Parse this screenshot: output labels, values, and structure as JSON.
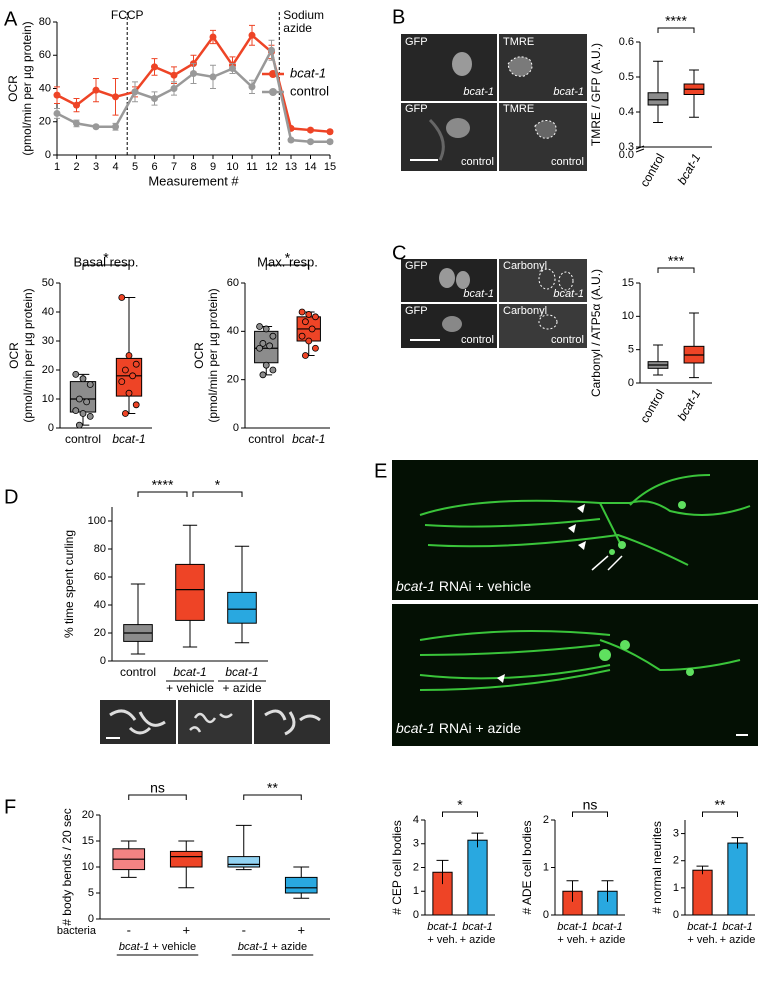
{
  "panel_letters": [
    "A",
    "B",
    "C",
    "D",
    "E",
    "F"
  ],
  "micrographs": {
    "B": [
      [
        "GFP",
        "bcat-1"
      ],
      [
        "TMRE",
        "bcat-1"
      ],
      [
        "GFP",
        "control"
      ],
      [
        "TMRE",
        "control"
      ]
    ],
    "C": [
      [
        "GFP",
        "bcat-1"
      ],
      [
        "Carbonyl",
        "bcat-1"
      ],
      [
        "GFP",
        "control"
      ],
      [
        "Carbonyl",
        "control"
      ]
    ],
    "E": [
      [
        "bcat-1",
        "RNAi + vehicle"
      ],
      [
        "bcat-1",
        "RNAi + azide"
      ]
    ]
  },
  "chart_data": [
    {
      "type": "line",
      "x": [
        1,
        2,
        3,
        4,
        5,
        6,
        7,
        8,
        9,
        10,
        11,
        12,
        13,
        14,
        15
      ],
      "xlim": [
        1,
        15
      ],
      "xticks": [
        1,
        2,
        3,
        4,
        5,
        6,
        7,
        8,
        9,
        10,
        11,
        12,
        13,
        14,
        15
      ],
      "xlabel": "Measurement #",
      "ylabel": [
        "OCR",
        "(pmol/min per µg protein)"
      ],
      "ylim": [
        0,
        80
      ],
      "yticks": [
        0,
        20,
        40,
        60,
        80
      ],
      "legend": "upper right",
      "annotations": [
        {
          "x": 4.6,
          "text": [
            "FCCP"
          ]
        },
        {
          "x": 12.4,
          "text": [
            "Sodium",
            "azide"
          ]
        }
      ],
      "series": [
        {
          "name": "bcat-1",
          "color": "#ee4426",
          "values": [
            36,
            30,
            39,
            35,
            38,
            53,
            48,
            55,
            71,
            54,
            72,
            62,
            16,
            15,
            14
          ],
          "errors": [
            5,
            4,
            7,
            11,
            3,
            5,
            5,
            5,
            4,
            5,
            6,
            4,
            1,
            1,
            1
          ]
        },
        {
          "name": "control",
          "color": "#999999",
          "values": [
            25,
            19,
            17,
            17,
            38,
            34,
            40,
            49,
            47,
            52,
            41,
            63,
            9,
            8,
            8
          ],
          "errors": [
            3,
            2,
            1,
            2,
            6,
            4,
            4,
            6,
            7,
            3,
            4,
            6,
            1,
            1,
            1
          ]
        }
      ]
    },
    {
      "type": "box",
      "title": "Basal resp.",
      "ylabel": [
        "OCR",
        "(pmol/min per µg protein)"
      ],
      "ylim": [
        0,
        50
      ],
      "yticks": [
        0,
        10,
        20,
        30,
        40,
        50
      ],
      "categories": [
        "control",
        "bcat-1"
      ],
      "significance": [
        "*"
      ],
      "boxes": [
        {
          "color": "#8c8c8c",
          "min": 1,
          "q1": 5.5,
          "median": 10,
          "q3": 16,
          "max": 18.5,
          "points": [
            18.5,
            17,
            15,
            10,
            9,
            6,
            5,
            4,
            1
          ]
        },
        {
          "color": "#ee4426",
          "min": 5,
          "q1": 11,
          "median": 18,
          "q3": 24,
          "max": 45,
          "points": [
            45,
            25,
            22,
            20,
            18,
            16,
            12,
            8,
            5
          ]
        }
      ]
    },
    {
      "type": "box",
      "title": "Max. resp.",
      "ylabel": [
        "OCR",
        "(pmol/min per µg protein)"
      ],
      "ylim": [
        0,
        60
      ],
      "yticks": [
        0,
        20,
        40,
        60
      ],
      "categories": [
        "control",
        "bcat-1"
      ],
      "significance": [
        "*"
      ],
      "boxes": [
        {
          "color": "#8c8c8c",
          "min": 22,
          "q1": 27,
          "median": 33,
          "q3": 40,
          "max": 42,
          "points": [
            42,
            41,
            38,
            35,
            34,
            33,
            26,
            24,
            22
          ]
        },
        {
          "color": "#ee4426",
          "min": 30,
          "q1": 36,
          "median": 41,
          "q3": 46,
          "max": 48,
          "points": [
            48,
            47,
            46,
            44,
            41,
            38,
            36,
            33,
            30
          ]
        }
      ]
    },
    {
      "type": "box",
      "ylabel": [
        "TMRE / GFP (A.U.)"
      ],
      "ylim": [
        0.3,
        0.6
      ],
      "yticks": [
        0.3,
        0.4,
        0.5,
        0.6
      ],
      "axis_break_label": "0.0",
      "categories": [
        "control",
        "bcat-1"
      ],
      "significance": [
        "****"
      ],
      "boxes": [
        {
          "color": "#8c8c8c",
          "min": 0.37,
          "q1": 0.42,
          "median": 0.435,
          "q3": 0.455,
          "max": 0.545
        },
        {
          "color": "#ee4426",
          "min": 0.385,
          "q1": 0.45,
          "median": 0.465,
          "q3": 0.48,
          "max": 0.52
        }
      ]
    },
    {
      "type": "box",
      "ylabel": [
        "Carbonyl / ATP5α (A.U.)"
      ],
      "ylim": [
        0,
        15
      ],
      "yticks": [
        0,
        5,
        10,
        15
      ],
      "categories": [
        "control",
        "bcat-1"
      ],
      "significance": [
        "***"
      ],
      "boxes": [
        {
          "color": "#8c8c8c",
          "min": 1.2,
          "q1": 2.2,
          "median": 2.7,
          "q3": 3.2,
          "max": 5.7
        },
        {
          "color": "#ee4426",
          "min": 0.8,
          "q1": 3,
          "median": 4.2,
          "q3": 5.5,
          "max": 10.5
        }
      ]
    },
    {
      "type": "box",
      "ylabel": [
        "% time spent curling"
      ],
      "ylim": [
        0,
        110
      ],
      "yticks": [
        0,
        20,
        40,
        60,
        80,
        100
      ],
      "categories": [
        "control",
        "bcat-1",
        "bcat-1"
      ],
      "group_labels": [
        "+ vehicle",
        "+ azide"
      ],
      "significance": [
        "****",
        "*"
      ],
      "boxes": [
        {
          "color": "#8c8c8c",
          "min": 5,
          "q1": 14,
          "median": 20,
          "q3": 26,
          "max": 55
        },
        {
          "color": "#ee4426",
          "min": 10,
          "q1": 29,
          "median": 51,
          "q3": 69,
          "max": 97
        },
        {
          "color": "#29a8e0",
          "min": 13,
          "q1": 27,
          "median": 37,
          "q3": 49,
          "max": 82
        }
      ]
    },
    {
      "type": "box",
      "ylabel": [
        "# body bends / 20 sec"
      ],
      "ylim": [
        0,
        20
      ],
      "yticks": [
        0,
        5,
        10,
        15,
        20
      ],
      "categories": [
        "-",
        "+",
        "-",
        "+"
      ],
      "row_label": "bacteria",
      "group_labels": [
        [
          "bcat-1",
          "+ vehicle"
        ],
        [
          "bcat-1",
          "+ azide"
        ]
      ],
      "significance": [
        "ns",
        "**"
      ],
      "boxes": [
        {
          "color": "#f38383",
          "min": 8,
          "q1": 9.5,
          "median": 11.5,
          "q3": 13.5,
          "max": 15
        },
        {
          "color": "#ee4426",
          "min": 6,
          "q1": 10,
          "median": 12,
          "q3": 13,
          "max": 15
        },
        {
          "color": "#92d3f2",
          "min": 9.5,
          "q1": 10,
          "median": 10.5,
          "q3": 12,
          "max": 18
        },
        {
          "color": "#29a8e0",
          "min": 4,
          "q1": 5,
          "median": 6,
          "q3": 8,
          "max": 10
        }
      ]
    },
    {
      "type": "bar",
      "ylabel": [
        "# CEP cell bodies"
      ],
      "ylim": [
        0,
        4
      ],
      "yticks": [
        0,
        1,
        2,
        3,
        4
      ],
      "categories": [
        [
          "bcat-1",
          "+ veh."
        ],
        [
          "bcat-1",
          "+ azide"
        ]
      ],
      "colors": [
        "#ee4426",
        "#29a8e0"
      ],
      "values": [
        1.8,
        3.15
      ],
      "errors": [
        0.5,
        0.3
      ],
      "significance": [
        "*"
      ]
    },
    {
      "type": "bar",
      "ylabel": [
        "# ADE cell bodies"
      ],
      "ylim": [
        0,
        2
      ],
      "yticks": [
        0,
        1,
        2
      ],
      "categories": [
        [
          "bcat-1",
          "+ veh."
        ],
        [
          "bcat-1",
          "+ azide"
        ]
      ],
      "colors": [
        "#ee4426",
        "#29a8e0"
      ],
      "values": [
        0.5,
        0.5
      ],
      "errors": [
        0.22,
        0.22
      ],
      "significance": [
        "ns"
      ]
    },
    {
      "type": "bar",
      "ylabel": [
        "# normal neurites"
      ],
      "ylim": [
        0,
        3.5
      ],
      "yticks": [
        0,
        1,
        2,
        3
      ],
      "categories": [
        [
          "bcat-1",
          "+ veh."
        ],
        [
          "bcat-1",
          "+ azide"
        ]
      ],
      "colors": [
        "#ee4426",
        "#29a8e0"
      ],
      "values": [
        1.65,
        2.65
      ],
      "errors": [
        0.15,
        0.2
      ],
      "significance": [
        "**"
      ]
    }
  ]
}
